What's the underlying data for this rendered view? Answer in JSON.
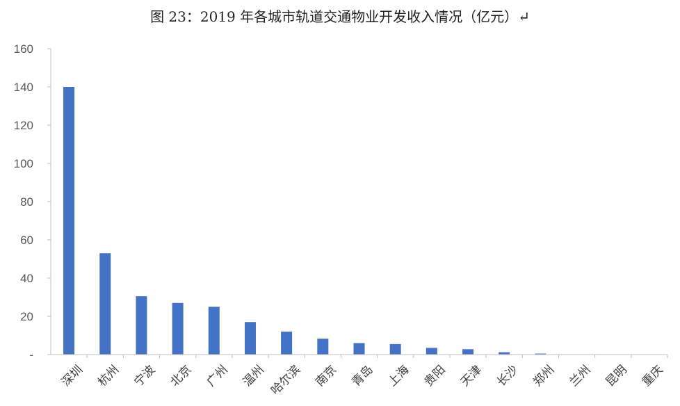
{
  "title": "图 23：2019 年各城市轨道交通物业开发收入情况（亿元）↵",
  "chart_data": {
    "type": "bar",
    "title": "图 23：2019 年各城市轨道交通物业开发收入情况（亿元）↵",
    "xlabel": "",
    "ylabel": "",
    "categories": [
      "深圳",
      "杭州",
      "宁波",
      "北京",
      "广州",
      "温州",
      "哈尔滨",
      "南京",
      "青岛",
      "上海",
      "贵阳",
      "天津",
      "长沙",
      "郑州",
      "兰州",
      "昆明",
      "重庆"
    ],
    "values": [
      140,
      53,
      30.5,
      27,
      25,
      17,
      12,
      8.3,
      6,
      5.5,
      3.5,
      2.8,
      1.2,
      0.5,
      0,
      0,
      0
    ],
    "ylim": [
      0,
      160
    ],
    "yticks": [
      "-",
      "20",
      "40",
      "60",
      "80",
      "100",
      "120",
      "140",
      "160"
    ],
    "grid": false,
    "legend": "none",
    "bar_color": "#4472C4",
    "axis_color": "#BFBFBF"
  }
}
